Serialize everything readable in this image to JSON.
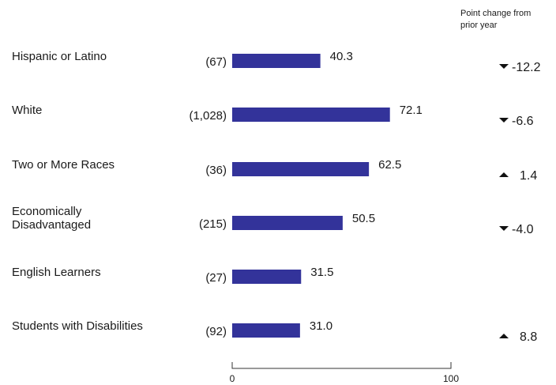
{
  "chart_data": {
    "type": "bar",
    "orientation": "horizontal",
    "categories": [
      "Hispanic or Latino",
      "White",
      "Two or More Races",
      "Economically Disadvantaged",
      "English Learners",
      "Students with Disabilities"
    ],
    "category_lines": [
      [
        "Hispanic or Latino"
      ],
      [
        "White"
      ],
      [
        "Two or More Races"
      ],
      [
        "Economically",
        "Disadvantaged"
      ],
      [
        "English Learners"
      ],
      [
        "Students with Disabilities"
      ]
    ],
    "counts": [
      "(67)",
      "(1,028)",
      "(36)",
      "(215)",
      "(27)",
      "(92)"
    ],
    "values": [
      40.3,
      72.1,
      62.5,
      50.5,
      31.5,
      31.0
    ],
    "value_labels": [
      "40.3",
      "72.1",
      "62.5",
      "50.5",
      "31.5",
      "31.0"
    ],
    "change_header": [
      "Point change from",
      "prior year"
    ],
    "changes": [
      {
        "direction": "down",
        "label": "-12.2"
      },
      {
        "direction": "down",
        "label": "-6.6"
      },
      {
        "direction": "up",
        "label": "1.4"
      },
      {
        "direction": "down",
        "label": "-4.0"
      },
      null,
      {
        "direction": "up",
        "label": "8.8"
      }
    ],
    "xlim": [
      0,
      100
    ],
    "ticks": [
      "0",
      "100"
    ],
    "bar_color": "#33339a",
    "grid": false
  }
}
